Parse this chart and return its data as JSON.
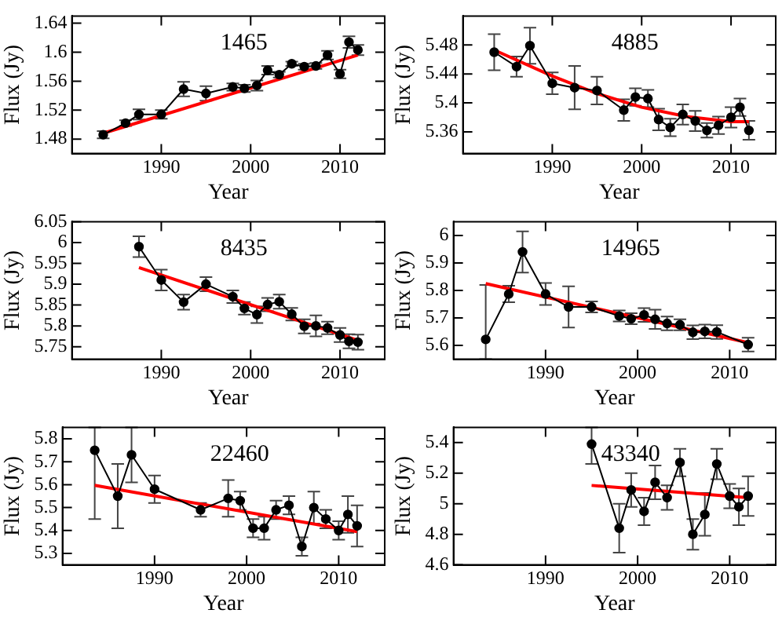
{
  "chart_data": [
    {
      "type": "line",
      "xlabel": "Year",
      "ylabel": "Flux (Jy)",
      "annotations": [
        "1465"
      ],
      "xlim": [
        1980,
        2015
      ],
      "xticks": [
        1990,
        2000,
        2010
      ],
      "ylim": [
        1.46,
        1.65
      ],
      "yticks": [
        1.48,
        1.52,
        1.56,
        1.6,
        1.64
      ],
      "line_style": "solid",
      "legend": false,
      "grid": false,
      "series": [
        {
          "color": "#000000",
          "marker": "circle",
          "x": [
            1983.5,
            1986,
            1987.5,
            1990,
            1992.5,
            1995,
            1998,
            1999.3,
            2000.7,
            2001.9,
            2003.2,
            2004.6,
            2006,
            2007.3,
            2008.6,
            2010,
            2011,
            2012
          ],
          "values": [
            1.486,
            1.502,
            1.514,
            1.514,
            1.549,
            1.543,
            1.552,
            1.55,
            1.554,
            1.575,
            1.569,
            1.584,
            1.58,
            1.581,
            1.596,
            1.57,
            1.614,
            1.603
          ],
          "errors": [
            0.005,
            0.004,
            0.007,
            0.006,
            0.01,
            0.01,
            0.005,
            0.005,
            0.007,
            0.006,
            0.004,
            0.003,
            0.004,
            0.004,
            0.006,
            0.006,
            0.008,
            0.007
          ]
        },
        {
          "type": "line",
          "color": "#ff0000",
          "x": [
            1983.5,
            2012
          ],
          "values": [
            1.488,
            1.596
          ]
        }
      ]
    },
    {
      "type": "line",
      "xlabel": "Year",
      "ylabel": "Flux (Jy)",
      "annotations": [
        "4885"
      ],
      "xlim": [
        1980,
        2015
      ],
      "xticks": [
        1990,
        2000,
        2010
      ],
      "ylim": [
        5.33,
        5.52
      ],
      "yticks": [
        5.36,
        5.4,
        5.44,
        5.48
      ],
      "line_style": "solid",
      "legend": false,
      "grid": false,
      "series": [
        {
          "color": "#000000",
          "marker": "circle",
          "x": [
            1983.5,
            1986,
            1987.5,
            1990,
            1992.5,
            1995,
            1998,
            1999.3,
            2000.7,
            2001.9,
            2003.2,
            2004.6,
            2006,
            2007.3,
            2008.6,
            2010,
            2011,
            2012
          ],
          "values": [
            5.47,
            5.45,
            5.479,
            5.427,
            5.421,
            5.417,
            5.39,
            5.408,
            5.406,
            5.377,
            5.366,
            5.384,
            5.375,
            5.362,
            5.369,
            5.38,
            5.394,
            5.362
          ],
          "errors": [
            0.025,
            0.014,
            0.025,
            0.015,
            0.03,
            0.019,
            0.015,
            0.012,
            0.012,
            0.015,
            0.012,
            0.014,
            0.014,
            0.01,
            0.012,
            0.014,
            0.012,
            0.013
          ]
        },
        {
          "type": "line",
          "color": "#ff0000",
          "x": [
            1983.5,
            1990,
            1995,
            2000,
            2005,
            2010,
            2012
          ],
          "values": [
            5.473,
            5.437,
            5.413,
            5.394,
            5.381,
            5.374,
            5.374
          ]
        }
      ]
    },
    {
      "type": "line",
      "xlabel": "Year",
      "ylabel": "Flux (Jy)",
      "annotations": [
        "8435"
      ],
      "xlim": [
        1980,
        2015
      ],
      "xticks": [
        1990,
        2000,
        2010
      ],
      "ylim": [
        5.72,
        6.05
      ],
      "yticks": [
        5.75,
        5.8,
        5.85,
        5.9,
        5.95,
        6,
        6.05
      ],
      "line_style": "solid",
      "legend": false,
      "grid": false,
      "series": [
        {
          "color": "#000000",
          "marker": "circle",
          "x": [
            1987.5,
            1990,
            1992.5,
            1995,
            1998,
            1999.3,
            2000.7,
            2001.9,
            2003.2,
            2004.6,
            2006,
            2007.3,
            2008.6,
            2010,
            2011,
            2012
          ],
          "values": [
            5.99,
            5.91,
            5.857,
            5.9,
            5.87,
            5.842,
            5.827,
            5.851,
            5.858,
            5.828,
            5.799,
            5.8,
            5.795,
            5.778,
            5.763,
            5.761
          ],
          "errors": [
            0.025,
            0.025,
            0.018,
            0.017,
            0.015,
            0.015,
            0.02,
            0.016,
            0.017,
            0.015,
            0.017,
            0.025,
            0.015,
            0.017,
            0.017,
            0.018
          ]
        },
        {
          "type": "line",
          "color": "#ff0000",
          "x": [
            1987.5,
            2012
          ],
          "values": [
            5.94,
            5.765
          ]
        }
      ]
    },
    {
      "type": "line",
      "xlabel": "Year",
      "ylabel": "Flux (Jy)",
      "annotations": [
        "14965"
      ],
      "xlim": [
        1980,
        2015
      ],
      "xticks": [
        1990,
        2000,
        2010
      ],
      "ylim": [
        5.55,
        6.05
      ],
      "yticks": [
        5.6,
        5.7,
        5.8,
        5.9,
        6
      ],
      "line_style": "solid",
      "legend": false,
      "grid": false,
      "series": [
        {
          "color": "#000000",
          "marker": "circle",
          "x": [
            1983.5,
            1986,
            1987.5,
            1990,
            1992.5,
            1995,
            1998,
            1999.3,
            2000.7,
            2001.9,
            2003.2,
            2004.6,
            2006,
            2007.3,
            2008.6,
            2012
          ],
          "values": [
            5.622,
            5.787,
            5.94,
            5.787,
            5.74,
            5.74,
            5.707,
            5.697,
            5.711,
            5.695,
            5.68,
            5.675,
            5.648,
            5.651,
            5.649,
            5.603
          ],
          "errors": [
            [
              5.55,
              5.82
            ],
            0.03,
            0.075,
            0.04,
            0.075,
            0.02,
            0.02,
            0.02,
            0.025,
            0.035,
            0.025,
            0.02,
            0.025,
            0.025,
            0.025,
            0.025
          ]
        },
        {
          "type": "line",
          "color": "#ff0000",
          "x": [
            1983.5,
            2012
          ],
          "values": [
            5.825,
            5.61
          ]
        }
      ]
    },
    {
      "type": "line",
      "xlabel": "Year",
      "ylabel": "Flux (Jy)",
      "annotations": [
        "22460"
      ],
      "xlim": [
        1980,
        2015
      ],
      "xticks": [
        1990,
        2000,
        2010
      ],
      "ylim": [
        5.25,
        5.85
      ],
      "yticks": [
        5.3,
        5.4,
        5.5,
        5.6,
        5.7,
        5.8
      ],
      "line_style": "solid",
      "legend": false,
      "grid": false,
      "series": [
        {
          "color": "#000000",
          "marker": "circle",
          "x": [
            1983.5,
            1986,
            1987.5,
            1990,
            1995,
            1998,
            1999.3,
            2000.7,
            2001.9,
            2003.2,
            2004.6,
            2006,
            2007.3,
            2008.6,
            2010,
            2011,
            2012
          ],
          "values": [
            5.75,
            5.55,
            5.73,
            5.58,
            5.49,
            5.54,
            5.53,
            5.41,
            5.41,
            5.49,
            5.51,
            5.33,
            5.5,
            5.45,
            5.4,
            5.47,
            5.42
          ],
          "errors": [
            [
              5.45,
              5.85
            ],
            0.14,
            [
              5.61,
              5.85
            ],
            0.06,
            0.03,
            0.08,
            0.04,
            0.04,
            0.05,
            0.04,
            0.04,
            0.04,
            0.07,
            0.04,
            0.04,
            0.08,
            0.09
          ]
        },
        {
          "type": "line",
          "color": "#ff0000",
          "x": [
            1983.5,
            2012
          ],
          "values": [
            5.597,
            5.395
          ]
        }
      ]
    },
    {
      "type": "line",
      "xlabel": "Year",
      "ylabel": "Flux (Jy)",
      "annotations": [
        "43340"
      ],
      "xlim": [
        1980,
        2015
      ],
      "xticks": [
        1990,
        2000,
        2010
      ],
      "ylim": [
        4.6,
        5.5
      ],
      "yticks": [
        4.6,
        4.8,
        5,
        5.2,
        5.4
      ],
      "line_style": "solid",
      "legend": false,
      "grid": false,
      "series": [
        {
          "color": "#000000",
          "marker": "circle",
          "x": [
            1995,
            1998,
            1999.3,
            2000.7,
            2001.9,
            2003.2,
            2004.6,
            2006,
            2007.3,
            2008.6,
            2010,
            2011,
            2012
          ],
          "values": [
            5.39,
            4.84,
            5.09,
            4.95,
            5.14,
            5.04,
            5.27,
            4.8,
            4.93,
            5.26,
            5.05,
            4.98,
            5.05
          ],
          "errors": [
            [
              5.26,
              5.5
            ],
            0.16,
            0.11,
            0.09,
            0.11,
            0.08,
            0.09,
            0.1,
            0.14,
            0.1,
            0.08,
            0.12,
            0.13
          ]
        },
        {
          "type": "line",
          "color": "#ff0000",
          "x": [
            1995,
            2012
          ],
          "values": [
            5.12,
            5.04
          ]
        }
      ]
    }
  ]
}
